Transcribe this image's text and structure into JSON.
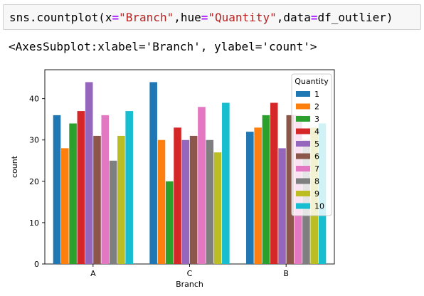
{
  "cell": {
    "code": {
      "fn": "sns.countplot(x",
      "eq1": "=",
      "x_arg": "\"Branch\"",
      "sep1": ",hue",
      "eq2": "=",
      "hue_arg": "\"Quantity\"",
      "sep2": ",data",
      "eq3": "=",
      "data_arg": "df_outlier)"
    },
    "output_text": "<AxesSubplot:xlabel='Branch', ylabel='count'>"
  },
  "chart_data": {
    "type": "bar",
    "title": "",
    "xlabel": "Branch",
    "ylabel": "count",
    "ylim": [
      0,
      47
    ],
    "yticks": [
      0,
      10,
      20,
      30,
      40
    ],
    "categories": [
      "A",
      "C",
      "B"
    ],
    "legend_title": "Quantity",
    "legend_position": "top-right",
    "grid": false,
    "series": [
      {
        "name": "1",
        "color": "#1f77b4",
        "values": [
          36,
          44,
          32
        ]
      },
      {
        "name": "2",
        "color": "#ff7f0e",
        "values": [
          28,
          30,
          33
        ]
      },
      {
        "name": "3",
        "color": "#2ca02c",
        "values": [
          34,
          20,
          36
        ]
      },
      {
        "name": "4",
        "color": "#d62728",
        "values": [
          37,
          33,
          39
        ]
      },
      {
        "name": "5",
        "color": "#9467bd",
        "values": [
          44,
          30,
          28
        ]
      },
      {
        "name": "6",
        "color": "#8c564b",
        "values": [
          31,
          31,
          36
        ]
      },
      {
        "name": "7",
        "color": "#e377c2",
        "values": [
          36,
          38,
          36
        ]
      },
      {
        "name": "8",
        "color": "#7f7f7f",
        "values": [
          25,
          30,
          30
        ]
      },
      {
        "name": "9",
        "color": "#bcbd22",
        "values": [
          31,
          27,
          33
        ]
      },
      {
        "name": "10",
        "color": "#17becf",
        "values": [
          37,
          39,
          34
        ]
      }
    ]
  }
}
